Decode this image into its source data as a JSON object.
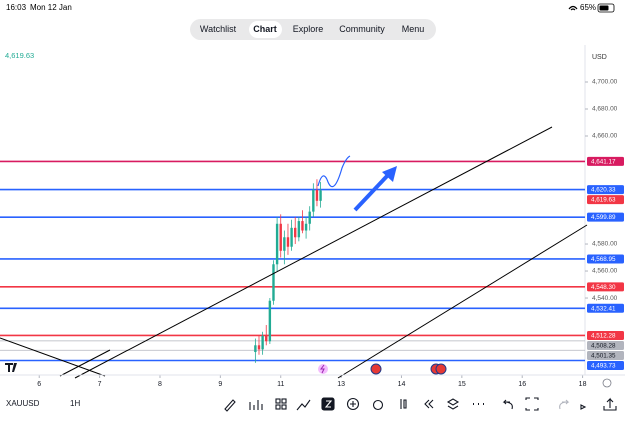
{
  "status_bar": {
    "time": "16:03",
    "date": "Mon 12 Jan",
    "battery": "65%"
  },
  "nav": {
    "tabs": [
      "Watchlist",
      "Chart",
      "Explore",
      "Community",
      "Menu"
    ]
  },
  "chart_data": {
    "type": "candlestick",
    "symbol": "XAUUSD",
    "interval": "1H",
    "currency": "USD",
    "last_price": "4,619.63",
    "xlim": [
      -0.65,
      9.04
    ],
    "ylim": [
      4483,
      4727.4
    ],
    "xticks": [
      {
        "value": 0,
        "label": "6"
      },
      {
        "value": 1,
        "label": "7"
      },
      {
        "value": 2,
        "label": "8"
      },
      {
        "value": 3,
        "label": "9"
      },
      {
        "value": 4,
        "label": "11"
      },
      {
        "value": 5,
        "label": "13"
      },
      {
        "value": 6,
        "label": "14"
      },
      {
        "value": 7,
        "label": "15"
      },
      {
        "value": 8,
        "label": "16"
      },
      {
        "value": 9,
        "label": "18"
      }
    ],
    "yticks": [
      {
        "value": 4700,
        "label": "4,700.00"
      },
      {
        "value": 4680,
        "label": "4,680.00"
      },
      {
        "value": 4660,
        "label": "4,660.00"
      },
      {
        "value": 4580,
        "label": "4,580.00"
      },
      {
        "value": 4560,
        "label": "4,560.00"
      },
      {
        "value": 4540,
        "label": "4,540.00"
      }
    ],
    "levels": [
      {
        "value": 4641.17,
        "label": "4,641.17",
        "color": "#d81b60",
        "line": true
      },
      {
        "value": 4620.33,
        "label": "4,620.33",
        "color": "#2962ff",
        "line": true
      },
      {
        "value": 4619.63,
        "label": "4,619.63",
        "color": "#f23645",
        "line": false
      },
      {
        "value": 4599.89,
        "label": "4,599.89",
        "color": "#2962ff",
        "line": true
      },
      {
        "value": 4568.95,
        "label": "4,568.95",
        "color": "#2962ff",
        "line": true
      },
      {
        "value": 4548.3,
        "label": "4,548.30",
        "color": "#f23645",
        "line": true
      },
      {
        "value": 4532.41,
        "label": "4,532.41",
        "color": "#2962ff",
        "line": true
      },
      {
        "value": 4512.28,
        "label": "4,512.28",
        "color": "#f23645",
        "line": true
      },
      {
        "value": 4508.28,
        "label": "4,508.28",
        "color": "#b2b5be",
        "line": true
      },
      {
        "value": 4501.35,
        "label": "4,501.35",
        "color": "#b2b5be",
        "line": true
      },
      {
        "value": 4493.73,
        "label": "4,493.73",
        "color": "#2962ff",
        "line": true
      }
    ],
    "up_color": "#22ab94",
    "down_color": "#f23645",
    "x": [
      3.58,
      3.64,
      3.7,
      3.76,
      3.82,
      3.88,
      3.94,
      4.0,
      4.06,
      4.12,
      4.18,
      4.24,
      4.3,
      4.36,
      4.42,
      4.48,
      4.54,
      4.6,
      4.66
    ],
    "open": [
      4500,
      4505,
      4502,
      4512,
      4508,
      4538,
      4565,
      4595,
      4575,
      4585,
      4578,
      4592,
      4585,
      4597,
      4590,
      4595,
      4604,
      4620,
      4612
    ],
    "high": [
      4510,
      4512,
      4515,
      4520,
      4540,
      4568,
      4600,
      4602,
      4590,
      4595,
      4598,
      4600,
      4600,
      4605,
      4600,
      4608,
      4625,
      4628,
      4626
    ],
    "low": [
      4492,
      4498,
      4498,
      4505,
      4506,
      4535,
      4560,
      4570,
      4565,
      4572,
      4575,
      4580,
      4582,
      4588,
      4584,
      4590,
      4600,
      4608,
      4607
    ],
    "close": [
      4505,
      4502,
      4512,
      4508,
      4538,
      4565,
      4595,
      4575,
      4585,
      4578,
      4592,
      4585,
      4597,
      4590,
      4595,
      4604,
      4620,
      4612,
      4619.63
    ]
  }
}
